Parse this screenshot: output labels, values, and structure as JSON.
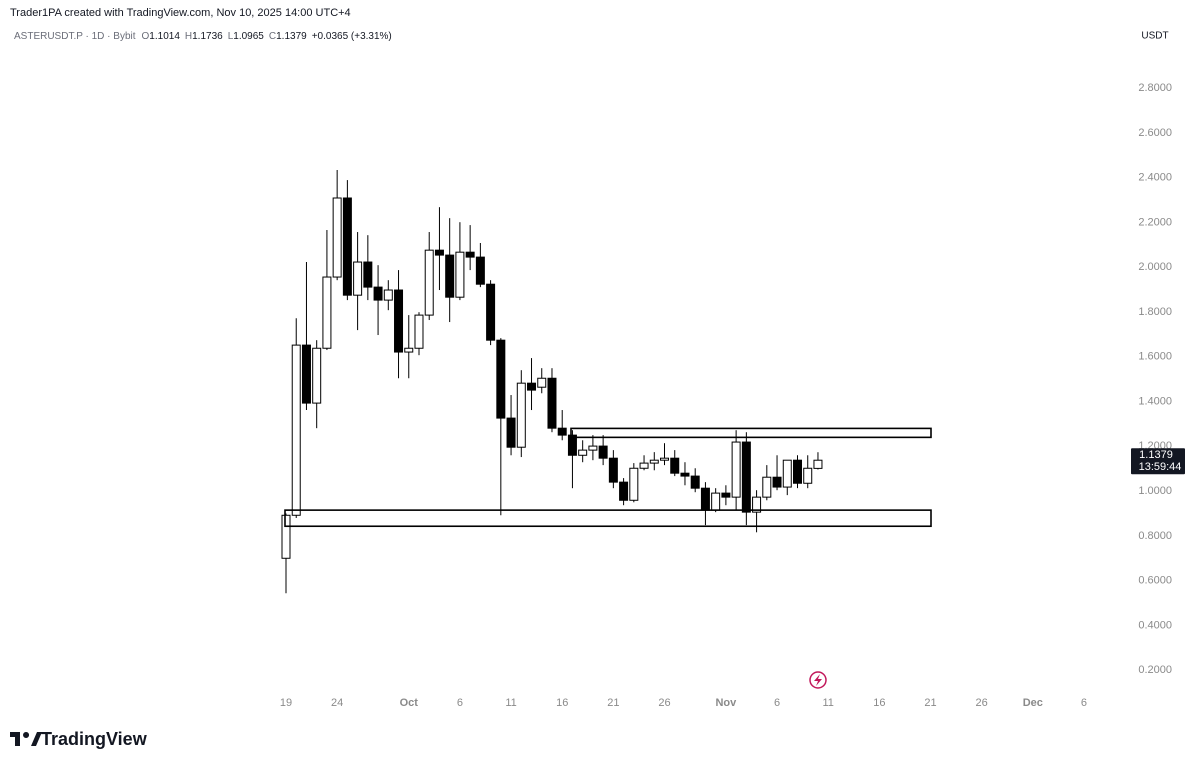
{
  "header": {
    "attribution": "Trader1PA created with TradingView.com, Nov 10, 2025 14:00 UTC+4"
  },
  "chart_data": {
    "type": "candlestick",
    "symbol": "ASTERUSDT.P · 1D · Bybit",
    "ohlc_labels": [
      "O",
      "H",
      "L",
      "C"
    ],
    "change": "+0.0365 (+3.31%)",
    "y_axis_label": "USDT",
    "countdown": "13:59:44",
    "up_color": "#ffffff",
    "down_color": "#000000",
    "categories": [
      "19",
      null,
      null,
      null,
      null,
      "24",
      null,
      null,
      null,
      null,
      null,
      null,
      "Oct",
      null,
      null,
      null,
      null,
      "6",
      null,
      null,
      null,
      null,
      "11",
      null,
      null,
      null,
      null,
      "16",
      null,
      null,
      null,
      null,
      "21",
      null,
      null,
      null,
      null,
      "26",
      null,
      null,
      null,
      null,
      null,
      "Nov",
      null,
      null,
      null,
      null,
      "6",
      null,
      null,
      null,
      null,
      "11",
      null,
      null,
      null,
      null,
      "16",
      null,
      null,
      null,
      null,
      "21",
      null,
      null,
      null,
      null,
      "26",
      null,
      null,
      null,
      null,
      "Dec",
      null,
      null,
      null,
      null,
      "6"
    ],
    "open": [
      0.7,
      0.892,
      1.652,
      1.393,
      1.638,
      1.956,
      2.309,
      1.875,
      2.023,
      1.911,
      1.853,
      1.898,
      1.621,
      1.638,
      1.786,
      2.076,
      2.054,
      1.866,
      2.067,
      2.045,
      1.924,
      1.674,
      1.326,
      1.196,
      1.482,
      1.464,
      1.504,
      1.281,
      1.25,
      1.16,
      1.183,
      1.201,
      1.147,
      1.04,
      0.959,
      1.102,
      1.125,
      1.138,
      1.147,
      1.08,
      1.067,
      1.013,
      0.915,
      0.991,
      0.973,
      1.219,
      0.906,
      0.973,
      1.062,
      1.018,
      1.138,
      1.035,
      1.1014,
      null,
      null,
      null,
      null,
      null,
      null,
      null,
      null,
      null,
      null,
      null,
      null,
      null,
      null,
      null,
      null,
      null,
      null,
      null,
      null,
      null,
      null,
      null,
      null,
      null,
      null
    ],
    "high": [
      0.9,
      1.772,
      2.023,
      1.674,
      2.166,
      2.434,
      2.389,
      2.157,
      2.143,
      2.009,
      1.942,
      1.987,
      1.786,
      1.799,
      2.157,
      2.268,
      2.219,
      2.201,
      2.188,
      2.108,
      1.942,
      1.683,
      1.429,
      1.54,
      1.594,
      1.549,
      1.549,
      1.362,
      1.272,
      1.227,
      1.25,
      1.25,
      1.183,
      1.058,
      1.125,
      1.16,
      1.174,
      1.214,
      1.183,
      1.129,
      1.102,
      1.04,
      1.013,
      1.026,
      1.272,
      1.263,
      1.004,
      1.116,
      1.16,
      1.138,
      1.16,
      1.16,
      1.1736,
      null,
      null,
      null,
      null,
      null,
      null,
      null,
      null,
      null,
      null,
      null,
      null,
      null,
      null,
      null,
      null,
      null,
      null,
      null,
      null,
      null,
      null,
      null,
      null,
      null,
      null
    ],
    "low": [
      0.544,
      0.88,
      1.362,
      1.281,
      1.63,
      1.942,
      1.853,
      1.719,
      1.853,
      1.697,
      1.808,
      1.504,
      1.504,
      1.607,
      1.764,
      1.898,
      1.755,
      1.853,
      1.987,
      1.911,
      1.652,
      0.892,
      1.16,
      1.152,
      1.362,
      1.437,
      1.263,
      1.227,
      1.013,
      1.129,
      1.138,
      1.116,
      1.013,
      0.937,
      0.95,
      1.093,
      1.093,
      1.116,
      1.067,
      1.026,
      0.995,
      0.848,
      0.906,
      0.937,
      0.915,
      0.848,
      0.816,
      0.959,
      1.004,
      0.982,
      1.013,
      1.013,
      1.0965,
      null,
      null,
      null,
      null,
      null,
      null,
      null,
      null,
      null,
      null,
      null,
      null,
      null,
      null,
      null,
      null,
      null,
      null,
      null,
      null,
      null,
      null,
      null,
      null,
      null,
      null
    ],
    "close": [
      0.892,
      1.652,
      1.393,
      1.638,
      1.956,
      2.309,
      1.875,
      2.023,
      1.911,
      1.853,
      1.898,
      1.621,
      1.638,
      1.786,
      2.076,
      2.054,
      1.866,
      2.067,
      2.045,
      1.924,
      1.674,
      1.326,
      1.196,
      1.482,
      1.451,
      1.504,
      1.281,
      1.25,
      1.16,
      1.183,
      1.201,
      1.147,
      1.04,
      0.959,
      1.102,
      1.125,
      1.138,
      1.147,
      1.08,
      1.067,
      1.013,
      0.915,
      0.991,
      0.973,
      1.219,
      0.906,
      0.973,
      1.062,
      1.018,
      1.138,
      1.035,
      1.102,
      1.1379,
      null,
      null,
      null,
      null,
      null,
      null,
      null,
      null,
      null,
      null,
      null,
      null,
      null,
      null,
      null,
      null,
      null,
      null,
      null,
      null,
      null,
      null,
      null,
      null,
      null,
      null
    ],
    "zones": [
      {
        "range": [
          1.24,
          1.28
        ]
      },
      {
        "range": [
          0.843,
          0.915
        ]
      }
    ],
    "ylim": [
      0,
      2.97
    ],
    "yticks": [
      {
        "value": 0.2,
        "label": "0.2000"
      },
      {
        "value": 0.4,
        "label": "0.4000"
      },
      {
        "value": 0.6,
        "label": "0.6000"
      },
      {
        "value": 0.8,
        "label": "0.8000"
      },
      {
        "value": 1.0,
        "label": "1.0000"
      },
      {
        "value": 1.2,
        "label": "1.2000"
      },
      {
        "value": 1.4,
        "label": "1.4000"
      },
      {
        "value": 1.6,
        "label": "1.6000"
      },
      {
        "value": 1.8,
        "label": "1.8000"
      },
      {
        "value": 2.0,
        "label": "2.0000"
      },
      {
        "value": 2.2,
        "label": "2.2000"
      },
      {
        "value": 2.4,
        "label": "2.4000"
      },
      {
        "value": 2.6,
        "label": "2.6000"
      },
      {
        "value": 2.8,
        "label": "2.8000"
      }
    ],
    "grid": false
  },
  "footer": {
    "logo": "TradingView"
  }
}
